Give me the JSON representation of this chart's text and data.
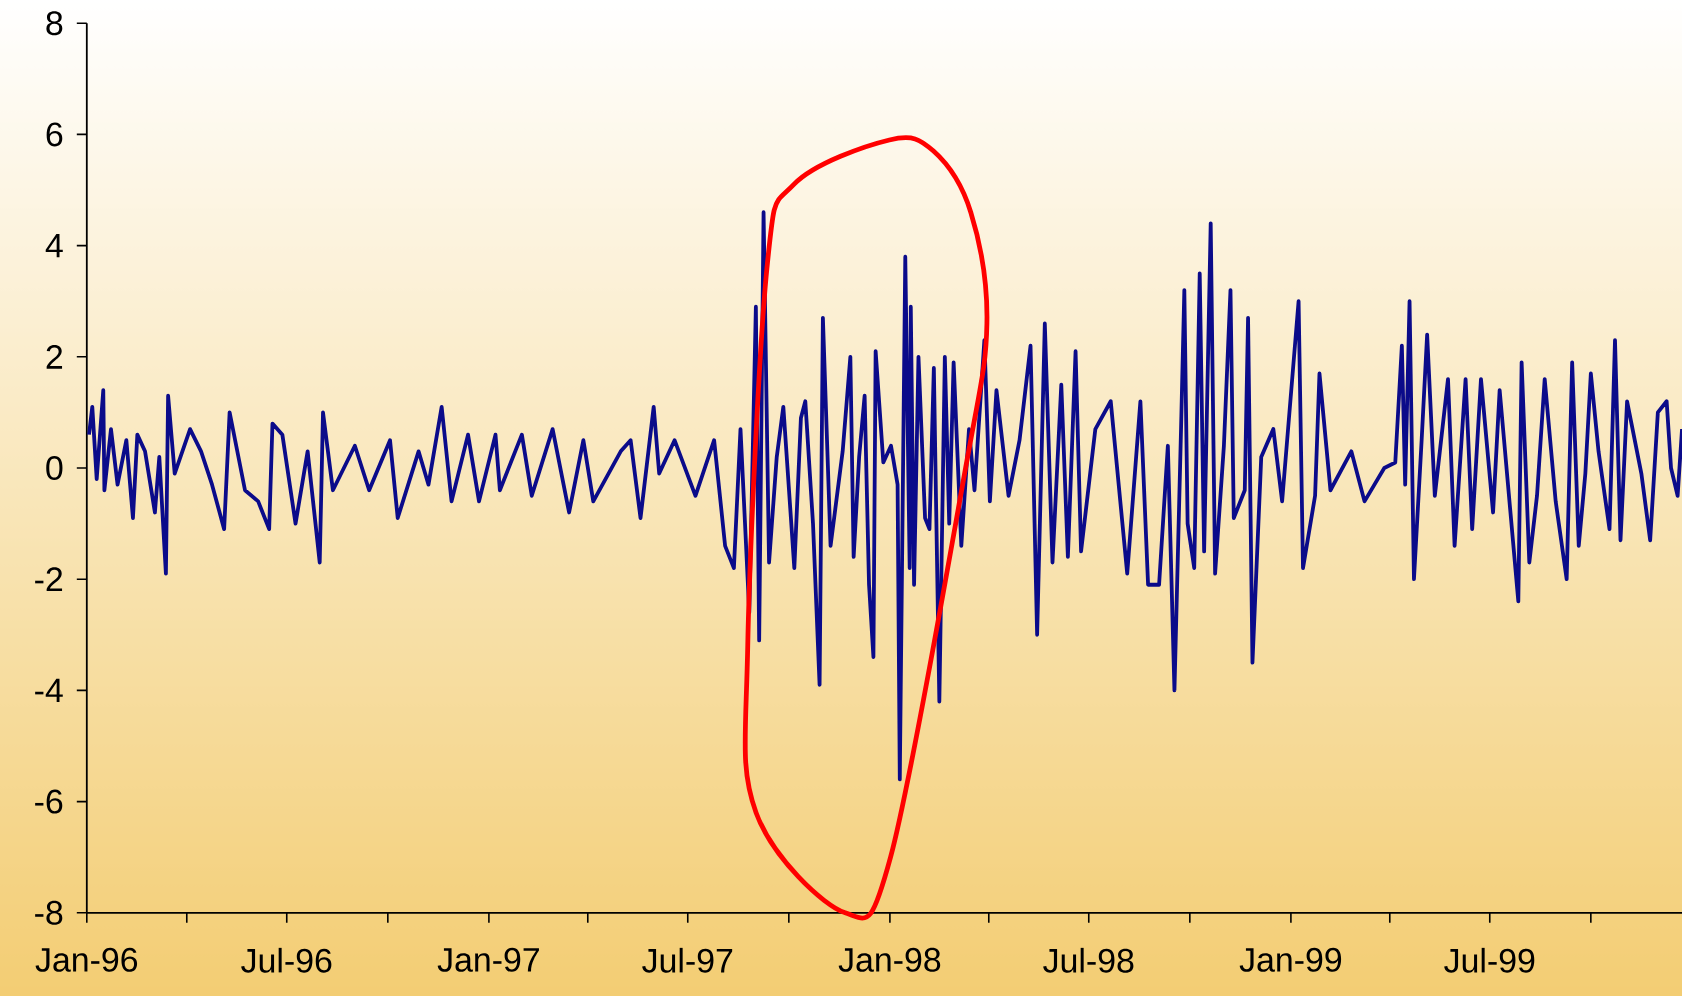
{
  "chart_data": {
    "type": "line",
    "color": "#0b0b8a",
    "x": [
      "1996-01-03",
      "1996-01-06",
      "1996-01-10",
      "1996-01-16",
      "1996-01-17",
      "1996-01-23",
      "1996-01-29",
      "1996-02-06",
      "1996-02-12",
      "1996-02-16",
      "1996-02-23",
      "1996-03-03",
      "1996-03-07",
      "1996-03-13",
      "1996-03-15",
      "1996-03-21",
      "1996-04-04",
      "1996-04-14",
      "1996-04-24",
      "1996-05-05",
      "1996-05-10",
      "1996-05-24",
      "1996-06-05",
      "1996-06-15",
      "1996-06-18",
      "1996-06-27",
      "1996-07-09",
      "1996-07-20",
      "1996-07-31",
      "1996-08-03",
      "1996-08-12",
      "1996-09-01",
      "1996-09-14",
      "1996-10-03",
      "1996-10-10",
      "1996-10-29",
      "1996-11-07",
      "1996-11-19",
      "1996-11-28",
      "1996-12-13",
      "1996-12-23",
      "1997-01-07",
      "1997-01-11",
      "1997-01-31",
      "1997-02-09",
      "1997-02-28",
      "1997-03-15",
      "1997-03-28",
      "1997-04-06",
      "1997-05-01",
      "1997-05-10",
      "1997-05-19",
      "1997-05-31",
      "1997-06-05",
      "1997-06-19",
      "1997-07-08",
      "1997-07-25",
      "1997-08-04",
      "1997-08-12",
      "1997-08-18",
      "1997-08-26",
      "1997-09-01",
      "1997-09-04",
      "1997-09-08",
      "1997-09-13",
      "1997-09-20",
      "1997-09-26",
      "1997-10-06",
      "1997-10-12",
      "1997-10-16",
      "1997-10-23",
      "1997-10-29",
      "1997-11-01",
      "1997-11-08",
      "1997-11-19",
      "1997-11-26",
      "1997-11-29",
      "1997-12-04",
      "1997-12-09",
      "1997-12-13",
      "1997-12-17",
      "1997-12-19",
      "1997-12-26",
      "1998-01-02",
      "1998-01-08",
      "1998-01-10",
      "1998-01-15",
      "1998-01-19",
      "1998-01-20",
      "1998-01-23",
      "1998-01-27",
      "1998-02-02",
      "1998-02-06",
      "1998-02-10",
      "1998-02-15",
      "1998-02-20",
      "1998-02-24",
      "1998-02-28",
      "1998-03-07",
      "1998-03-14",
      "1998-03-19",
      "1998-03-28",
      "1998-04-02",
      "1998-04-08",
      "1998-04-19",
      "1998-04-29",
      "1998-05-09",
      "1998-05-15",
      "1998-05-22",
      "1998-05-29",
      "1998-06-06",
      "1998-06-12",
      "1998-06-19",
      "1998-06-24",
      "1998-07-07",
      "1998-07-21",
      "1998-08-05",
      "1998-08-17",
      "1998-08-24",
      "1998-09-03",
      "1998-09-11",
      "1998-09-17",
      "1998-09-23",
      "1998-09-26",
      "1998-09-29",
      "1998-10-05",
      "1998-10-10",
      "1998-10-14",
      "1998-10-20",
      "1998-10-24",
      "1998-11-01",
      "1998-11-07",
      "1998-11-10",
      "1998-11-20",
      "1998-11-23",
      "1998-11-27",
      "1998-12-05",
      "1998-12-16",
      "1998-12-24",
      "1999-01-08",
      "1999-01-12",
      "1999-01-23",
      "1999-01-27",
      "1999-02-06",
      "1999-02-25",
      "1999-03-09",
      "1999-03-27",
      "1999-04-06",
      "1999-04-12",
      "1999-04-15",
      "1999-04-19",
      "1999-04-23",
      "1999-04-30",
      "1999-05-05",
      "1999-05-12",
      "1999-05-24",
      "1999-05-30",
      "1999-06-09",
      "1999-06-15",
      "1999-06-23",
      "1999-07-04",
      "1999-07-10",
      "1999-07-27",
      "1999-07-30",
      "1999-08-06",
      "1999-08-13",
      "1999-08-20",
      "1999-08-30",
      "1999-09-09",
      "1999-09-14",
      "1999-09-20",
      "1999-09-26",
      "1999-10-01",
      "1999-10-08",
      "1999-10-18",
      "1999-10-23",
      "1999-10-28",
      "1999-11-03",
      "1999-11-16",
      "1999-11-24",
      "1999-12-01",
      "1999-12-09",
      "1999-12-13",
      "1999-12-19",
      "1999-12-23"
    ],
    "values": [
      0.6,
      1.1,
      -0.2,
      1.4,
      -0.4,
      0.7,
      -0.3,
      0.5,
      -0.9,
      0.6,
      0.3,
      -0.8,
      0.2,
      -1.9,
      1.3,
      -0.1,
      0.7,
      0.3,
      -0.3,
      -1.1,
      1.0,
      -0.4,
      -0.6,
      -1.1,
      0.8,
      0.6,
      -1.0,
      0.3,
      -1.7,
      1.0,
      -0.4,
      0.4,
      -0.4,
      0.5,
      -0.9,
      0.3,
      -0.3,
      1.1,
      -0.6,
      0.6,
      -0.6,
      0.6,
      -0.4,
      0.6,
      -0.5,
      0.7,
      -0.8,
      0.5,
      -0.6,
      0.3,
      0.5,
      -0.9,
      1.1,
      -0.1,
      0.5,
      -0.5,
      0.5,
      -1.4,
      -1.8,
      0.7,
      -2.6,
      2.9,
      -3.1,
      4.6,
      -1.7,
      0.2,
      1.1,
      -1.8,
      0.9,
      1.2,
      -1.0,
      -3.9,
      2.7,
      -1.4,
      0.3,
      2.0,
      -1.6,
      0.2,
      1.3,
      -2.1,
      -3.4,
      2.1,
      0.1,
      0.4,
      -0.3,
      -5.6,
      3.8,
      -1.8,
      2.9,
      -2.1,
      2.0,
      -0.9,
      -1.1,
      1.8,
      -4.2,
      2.0,
      -1.0,
      1.9,
      -1.4,
      0.7,
      -0.4,
      2.3,
      -0.6,
      1.4,
      -0.5,
      0.5,
      2.2,
      -3.0,
      2.6,
      -1.7,
      1.5,
      -1.6,
      2.1,
      -1.5,
      0.7,
      1.2,
      -1.9,
      1.2,
      -2.1,
      -2.1,
      0.4,
      -4.0,
      0.7,
      3.2,
      -1.0,
      -1.8,
      3.5,
      -1.5,
      4.4,
      -1.9,
      0.4,
      3.2,
      -0.9,
      -0.4,
      2.7,
      -3.5,
      0.2,
      0.7,
      -0.6,
      3.0,
      -1.8,
      -0.5,
      1.7,
      -0.4,
      0.3,
      -0.6,
      0.0,
      0.1,
      2.2,
      -0.3,
      3.0,
      -2.0,
      0.5,
      2.4,
      -0.5,
      1.6,
      -1.4,
      1.6,
      -1.1,
      1.6,
      -0.8,
      1.4,
      -2.4,
      1.9,
      -1.7,
      -0.5,
      1.6,
      -0.6,
      -2.0,
      1.9,
      -1.4,
      -0.1,
      1.7,
      0.3,
      -1.1,
      2.3,
      -1.3,
      1.2,
      -0.1,
      -1.3,
      1.0,
      1.2,
      0.0,
      -0.5,
      0.7
    ],
    "xlim": [
      "1996-01-01",
      "1999-12-23"
    ],
    "ylim": [
      -8,
      8
    ],
    "xticks": [
      {
        "value": "1996-01",
        "label": "Jan-96"
      },
      {
        "value": "1996-04",
        "label": null
      },
      {
        "value": "1996-07",
        "label": "Jul-96"
      },
      {
        "value": "1996-10",
        "label": null
      },
      {
        "value": "1997-01",
        "label": "Jan-97"
      },
      {
        "value": "1997-04",
        "label": null
      },
      {
        "value": "1997-07",
        "label": "Jul-97"
      },
      {
        "value": "1997-10",
        "label": null
      },
      {
        "value": "1998-01",
        "label": "Jan-98"
      },
      {
        "value": "1998-04",
        "label": null
      },
      {
        "value": "1998-07",
        "label": "Jul-98"
      },
      {
        "value": "1998-10",
        "label": null
      },
      {
        "value": "1999-01",
        "label": "Jan-99"
      },
      {
        "value": "1999-04",
        "label": null
      },
      {
        "value": "1999-07",
        "label": "Jul-99"
      },
      {
        "value": "1999-10",
        "label": null
      }
    ],
    "yticks": [
      -8,
      -6,
      -4,
      -2,
      0,
      2,
      4,
      6,
      8
    ]
  }
}
